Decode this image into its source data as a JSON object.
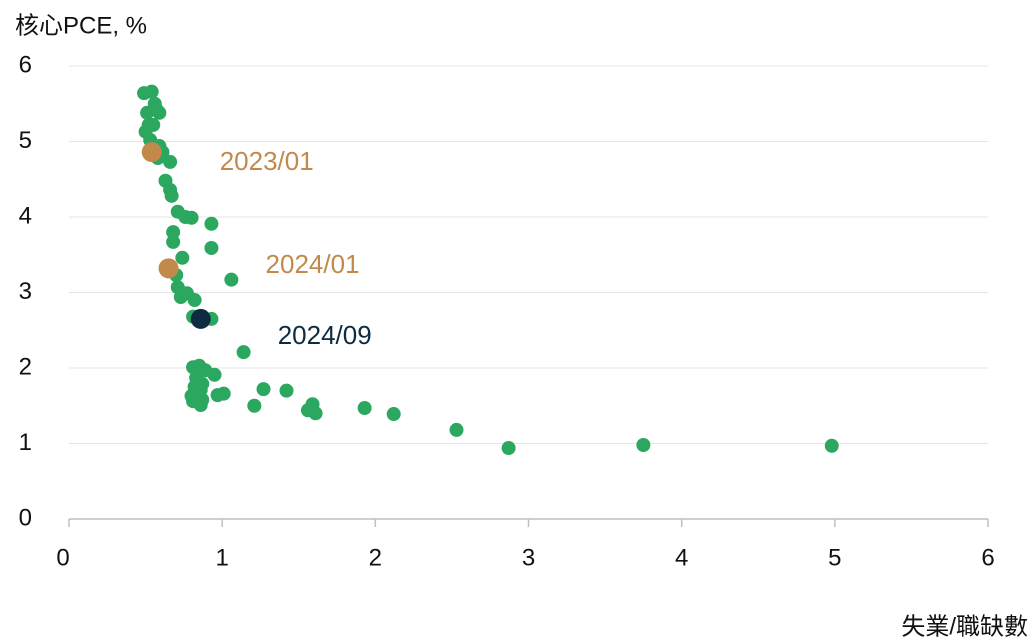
{
  "chart_data": {
    "type": "scatter",
    "y_label": "核心PCE, %",
    "x_label": "失業/職缺數",
    "xlim": [
      0,
      6
    ],
    "xticks": [
      0,
      1,
      2,
      3,
      4,
      5,
      6
    ],
    "ylim": [
      0,
      6
    ],
    "yticks": [
      0,
      1,
      2,
      3,
      4,
      5,
      6
    ],
    "grid": true,
    "series": [
      {
        "color": "#2ba760",
        "x": [
          0.49,
          0.54,
          0.56,
          0.57,
          0.59,
          0.51,
          0.52,
          0.55,
          0.5,
          0.53,
          0.59,
          0.61,
          0.58,
          0.66,
          0.63,
          0.66,
          0.67,
          0.71,
          0.76,
          0.8,
          0.93,
          0.68,
          0.68,
          0.93,
          0.74,
          0.7,
          1.06,
          0.71,
          0.73,
          0.77,
          0.82,
          0.81,
          0.93,
          1.14,
          0.81,
          0.85,
          0.89,
          0.95,
          0.83,
          0.87,
          0.82,
          0.86,
          1.27,
          1.42,
          0.8,
          0.97,
          1.01,
          0.81,
          0.87,
          0.86,
          1.21,
          1.59,
          1.56,
          1.61,
          1.93,
          2.12,
          2.53,
          2.87,
          3.75,
          4.98
        ],
        "values": [
          5.64,
          5.66,
          5.5,
          5.43,
          5.38,
          5.38,
          5.22,
          5.22,
          5.13,
          5.02,
          4.94,
          4.86,
          4.78,
          4.73,
          4.48,
          4.36,
          4.28,
          4.07,
          4.0,
          3.99,
          3.91,
          3.8,
          3.67,
          3.59,
          3.46,
          3.23,
          3.17,
          3.07,
          2.94,
          2.99,
          2.9,
          2.68,
          2.65,
          2.21,
          2.01,
          2.03,
          1.97,
          1.91,
          1.87,
          1.79,
          1.75,
          1.71,
          1.72,
          1.7,
          1.63,
          1.64,
          1.66,
          1.56,
          1.58,
          1.51,
          1.5,
          1.52,
          1.44,
          1.4,
          1.47,
          1.39,
          1.18,
          0.94,
          0.98,
          0.97
        ]
      },
      {
        "name": "2023/01",
        "color": "#c18a4b",
        "x": [
          0.54
        ],
        "values": [
          4.86
        ]
      },
      {
        "name": "2024/01",
        "color": "#c18a4b",
        "x": [
          0.65
        ],
        "values": [
          3.32
        ]
      },
      {
        "name": "2024/09",
        "color": "#0e2b40",
        "x": [
          0.86
        ],
        "values": [
          2.65
        ]
      }
    ]
  }
}
